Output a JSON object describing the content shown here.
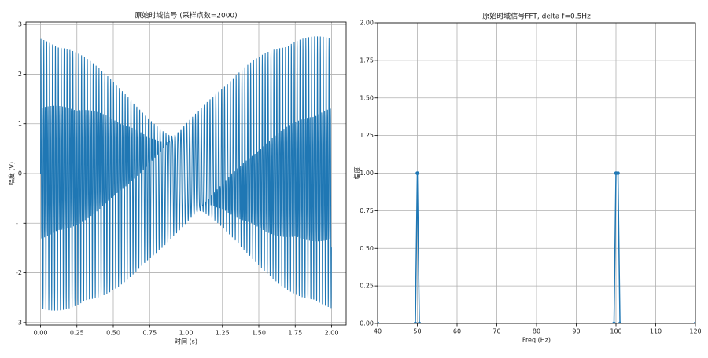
{
  "chart_data": [
    {
      "type": "signal",
      "title": "原始时域信号 (采样点数=2000)",
      "x_label": "时间 (s)",
      "y_label": "幅度 (V)",
      "color": "#1f77b4",
      "sample_rate": 1000,
      "samples": 2000,
      "components": [
        {
          "freq": 50,
          "amp": 1
        },
        {
          "freq": 100,
          "amp": 1
        },
        {
          "freq": 100.5,
          "amp": 1
        }
      ],
      "xlim": [
        -0.1,
        2.1
      ],
      "ylim": [
        -3.05,
        3.05
      ],
      "xticks": [
        {
          "value": 0,
          "label": "0.00"
        },
        {
          "value": 0.25,
          "label": "0.25"
        },
        {
          "value": 0.5,
          "label": "0.50"
        },
        {
          "value": 0.75,
          "label": "0.75"
        },
        {
          "value": 1,
          "label": "1.00"
        },
        {
          "value": 1.25,
          "label": "1.25"
        },
        {
          "value": 1.5,
          "label": "1.50"
        },
        {
          "value": 1.75,
          "label": "1.75"
        },
        {
          "value": 2,
          "label": "2.00"
        }
      ],
      "yticks": [
        -3,
        -2,
        -1,
        0,
        1,
        2,
        3
      ],
      "grid": true
    },
    {
      "type": "line",
      "title": "原始时域信号FFT, delta f=0.5Hz",
      "x_label": "Freq (Hz)",
      "y_label": "幅度",
      "color": "#1f77b4",
      "markers": true,
      "x": [
        40,
        49.5,
        50,
        50.5,
        99.5,
        100,
        100.5,
        101,
        120
      ],
      "values": [
        0,
        0,
        1,
        0,
        0,
        1,
        1,
        0,
        0
      ],
      "xlim": [
        40,
        120
      ],
      "ylim": [
        0,
        2
      ],
      "xticks": [
        40,
        50,
        60,
        70,
        80,
        90,
        100,
        110,
        120
      ],
      "yticks": [
        {
          "value": 0,
          "label": "0.00"
        },
        {
          "value": 0.25,
          "label": "0.25"
        },
        {
          "value": 0.5,
          "label": "0.50"
        },
        {
          "value": 0.75,
          "label": "0.75"
        },
        {
          "value": 1,
          "label": "1.00"
        },
        {
          "value": 1.25,
          "label": "1.25"
        },
        {
          "value": 1.5,
          "label": "1.50"
        },
        {
          "value": 1.75,
          "label": "1.75"
        },
        {
          "value": 2,
          "label": "2.00"
        }
      ],
      "grid": true
    }
  ]
}
